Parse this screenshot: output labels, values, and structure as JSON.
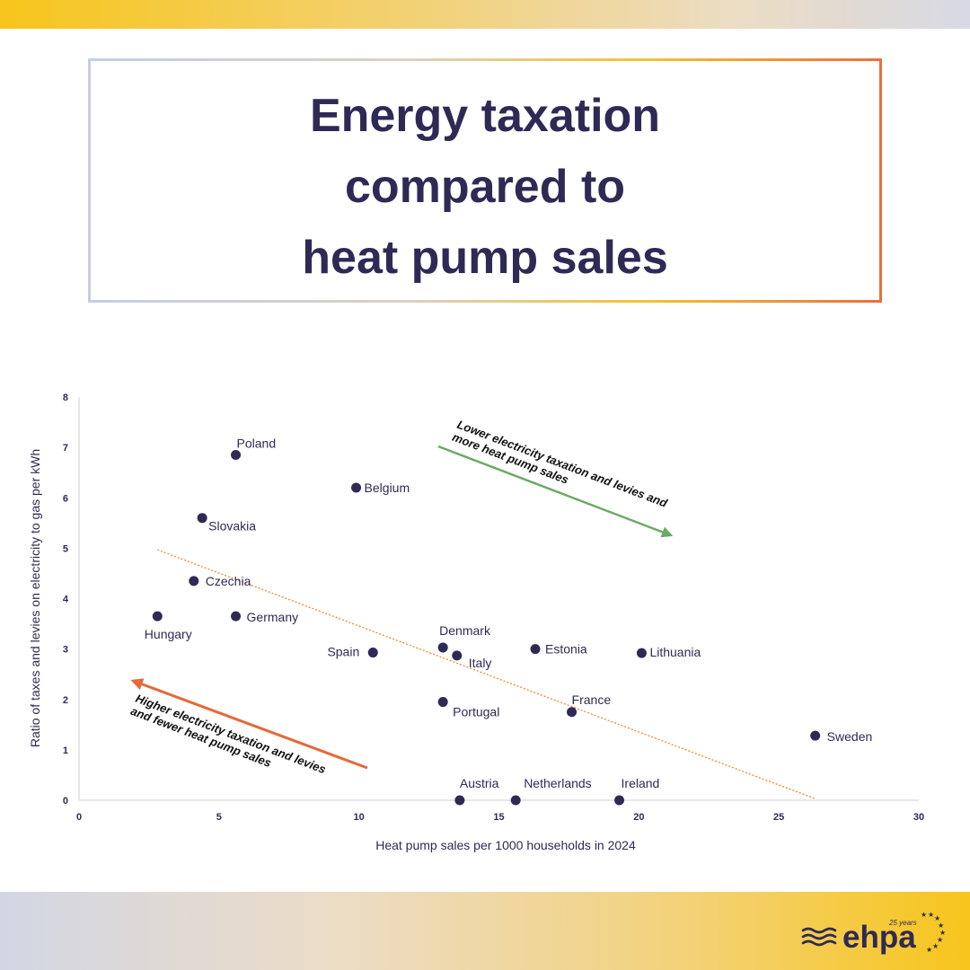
{
  "title_lines": [
    "Energy taxation",
    "compared to",
    "heat pump sales"
  ],
  "colors": {
    "navy": "#2e2a55",
    "green_arrow": "#6aaa64",
    "orange_arrow": "#e6693a",
    "trendline": "#ec8a2e",
    "axis": "#cfcfcf"
  },
  "chart_data": {
    "type": "scatter",
    "xlabel": "Heat pump sales per 1000 households in 2024",
    "ylabel": "Ratio of taxes and levies on electricity to gas per kWh",
    "xlim": [
      0,
      30
    ],
    "ylim": [
      0,
      8
    ],
    "xticks": [
      "0",
      "5",
      "10",
      "15",
      "20",
      "25",
      "30"
    ],
    "yticks": [
      "0",
      "1",
      "2",
      "3",
      "4",
      "5",
      "6",
      "7",
      "8"
    ],
    "points": [
      {
        "name": "Poland",
        "x": 5.6,
        "y": 6.85
      },
      {
        "name": "Belgium",
        "x": 9.9,
        "y": 6.2
      },
      {
        "name": "Slovakia",
        "x": 4.4,
        "y": 5.6
      },
      {
        "name": "Czechia",
        "x": 4.1,
        "y": 4.35
      },
      {
        "name": "Hungary",
        "x": 2.8,
        "y": 3.65
      },
      {
        "name": "Germany",
        "x": 5.6,
        "y": 3.65
      },
      {
        "name": "Spain",
        "x": 10.5,
        "y": 2.93
      },
      {
        "name": "Denmark",
        "x": 13.0,
        "y": 3.03
      },
      {
        "name": "Italy",
        "x": 13.5,
        "y": 2.87
      },
      {
        "name": "Estonia",
        "x": 16.3,
        "y": 3.0
      },
      {
        "name": "Lithuania",
        "x": 20.1,
        "y": 2.92
      },
      {
        "name": "Portugal",
        "x": 13.0,
        "y": 1.95
      },
      {
        "name": "France",
        "x": 17.6,
        "y": 1.75
      },
      {
        "name": "Sweden",
        "x": 26.3,
        "y": 1.28
      },
      {
        "name": "Austria",
        "x": 13.6,
        "y": 0.0
      },
      {
        "name": "Netherlands",
        "x": 15.6,
        "y": 0.0
      },
      {
        "name": "Ireland",
        "x": 19.3,
        "y": 0.0
      }
    ],
    "trendline": {
      "x0": 2.8,
      "y0": 4.97,
      "x1": 26.3,
      "y1": 0.03
    },
    "annotations": {
      "lower": [
        "Lower electricity taxation and levies and",
        "more heat pump sales"
      ],
      "higher": [
        "Higher electricity taxation and levies",
        "and fewer heat pump sales"
      ]
    }
  },
  "logo": {
    "text": "ehpa",
    "tagline": "25 years"
  }
}
